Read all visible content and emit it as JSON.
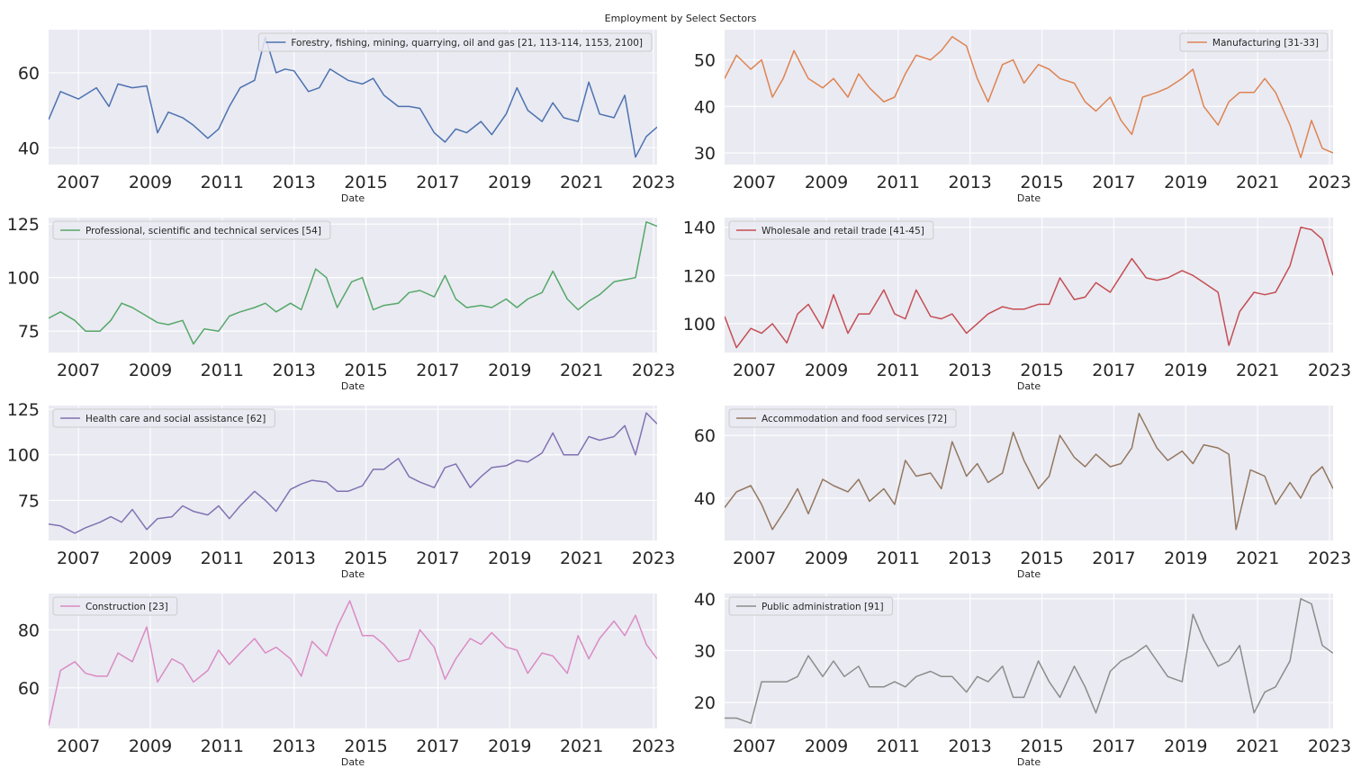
{
  "title": "Employment by Select Sectors",
  "colors": {
    "background": "#eaeaf2",
    "grid": "#ffffff"
  },
  "chart_data": [
    {
      "type": "line",
      "series_name": "Forestry, fishing, mining, quarrying, oil and gas [21, 113-114, 1153, 2100]",
      "color": "#4c72b0",
      "xlabel": "Date",
      "xlim": [
        2006.17,
        2023.1
      ],
      "ylim": [
        35.5,
        71.5
      ],
      "xticks": [
        "2007",
        "2009",
        "2011",
        "2013",
        "2015",
        "2017",
        "2019",
        "2021",
        "2023"
      ],
      "yticks": [
        "40",
        "60"
      ],
      "legend": "top-right",
      "x": [
        2006.17,
        2006.5,
        2007,
        2007.5,
        2007.85,
        2008.1,
        2008.5,
        2008.9,
        2009.2,
        2009.5,
        2009.9,
        2010.2,
        2010.6,
        2010.9,
        2011.2,
        2011.5,
        2011.9,
        2012.2,
        2012.5,
        2012.75,
        2013,
        2013.4,
        2013.7,
        2014,
        2014.5,
        2014.9,
        2015.2,
        2015.5,
        2015.9,
        2016.2,
        2016.5,
        2016.9,
        2017.2,
        2017.5,
        2017.8,
        2018.2,
        2018.5,
        2018.9,
        2019.2,
        2019.5,
        2019.9,
        2020.2,
        2020.5,
        2020.9,
        2021.2,
        2021.5,
        2021.9,
        2022.2,
        2022.5,
        2022.8,
        2023.1
      ],
      "values": [
        47.5,
        55,
        53,
        56,
        51,
        57,
        56,
        56.5,
        44,
        49.5,
        48,
        46,
        42.5,
        45,
        51,
        56,
        58,
        69.5,
        60,
        61,
        60.5,
        55,
        56,
        61,
        58,
        57,
        58.5,
        54,
        51,
        51,
        50.5,
        44,
        41.5,
        45,
        44,
        47,
        43.5,
        49,
        56,
        50,
        47,
        52,
        48,
        47,
        57.5,
        49,
        48,
        54,
        37.5,
        43,
        45.5
      ]
    },
    {
      "type": "line",
      "series_name": "Manufacturing [31-33]",
      "color": "#dd8452",
      "xlabel": "Date",
      "xlim": [
        2006.17,
        2023.1
      ],
      "ylim": [
        27.5,
        56.5
      ],
      "xticks": [
        "2007",
        "2009",
        "2011",
        "2013",
        "2015",
        "2017",
        "2019",
        "2021",
        "2023"
      ],
      "yticks": [
        "30",
        "40",
        "50"
      ],
      "legend": "top-right",
      "x": [
        2006.17,
        2006.5,
        2006.9,
        2007.2,
        2007.5,
        2007.8,
        2008.1,
        2008.5,
        2008.9,
        2009.2,
        2009.6,
        2009.9,
        2010.2,
        2010.6,
        2010.9,
        2011.2,
        2011.5,
        2011.9,
        2012.2,
        2012.5,
        2012.9,
        2013.2,
        2013.5,
        2013.9,
        2014.2,
        2014.5,
        2014.9,
        2015.2,
        2015.5,
        2015.9,
        2016.2,
        2016.5,
        2016.9,
        2017.2,
        2017.5,
        2017.8,
        2018.2,
        2018.5,
        2018.9,
        2019.2,
        2019.5,
        2019.9,
        2020.2,
        2020.5,
        2020.9,
        2021.2,
        2021.5,
        2021.9,
        2022.2,
        2022.5,
        2022.8,
        2023.1
      ],
      "values": [
        46,
        51,
        48,
        50,
        42,
        46,
        52,
        46,
        44,
        46,
        42,
        47,
        44,
        41,
        42,
        47,
        51,
        50,
        52,
        55,
        53,
        46,
        41,
        49,
        50,
        45,
        49,
        48,
        46,
        45,
        41,
        39,
        42,
        37,
        34,
        42,
        43,
        44,
        46,
        48,
        40,
        36,
        41,
        43,
        43,
        46,
        43,
        36,
        29,
        37,
        31,
        30
      ]
    },
    {
      "type": "line",
      "series_name": "Professional, scientific and technical services [54]",
      "color": "#55a868",
      "xlabel": "Date",
      "xlim": [
        2006.17,
        2023.1
      ],
      "ylim": [
        65,
        128
      ],
      "xticks": [
        "2007",
        "2009",
        "2011",
        "2013",
        "2015",
        "2017",
        "2019",
        "2021",
        "2023"
      ],
      "yticks": [
        "75",
        "100",
        "125"
      ],
      "legend": "top-left",
      "x": [
        2006.17,
        2006.5,
        2006.9,
        2007.2,
        2007.6,
        2007.9,
        2008.2,
        2008.5,
        2008.9,
        2009.2,
        2009.5,
        2009.9,
        2010.2,
        2010.5,
        2010.9,
        2011.2,
        2011.5,
        2011.9,
        2012.2,
        2012.5,
        2012.9,
        2013.2,
        2013.6,
        2013.9,
        2014.2,
        2014.6,
        2014.9,
        2015.2,
        2015.5,
        2015.9,
        2016.2,
        2016.5,
        2016.9,
        2017.2,
        2017.5,
        2017.8,
        2018.2,
        2018.5,
        2018.9,
        2019.2,
        2019.5,
        2019.9,
        2020.2,
        2020.6,
        2020.9,
        2021.2,
        2021.5,
        2021.9,
        2022.2,
        2022.5,
        2022.8,
        2023.1
      ],
      "values": [
        81,
        84,
        80,
        75,
        75,
        80,
        88,
        86,
        82,
        79,
        78,
        80,
        69,
        76,
        75,
        82,
        84,
        86,
        88,
        84,
        88,
        85,
        104,
        100,
        86,
        98,
        100,
        85,
        87,
        88,
        93,
        94,
        91,
        101,
        90,
        86,
        87,
        86,
        90,
        86,
        90,
        93,
        103,
        90,
        85,
        89,
        92,
        98,
        99,
        100,
        126,
        124
      ]
    },
    {
      "type": "line",
      "series_name": "Wholesale and retail trade [41-45]",
      "color": "#c44e52",
      "xlabel": "Date",
      "xlim": [
        2006.17,
        2023.1
      ],
      "ylim": [
        88,
        144
      ],
      "xticks": [
        "2007",
        "2009",
        "2011",
        "2013",
        "2015",
        "2017",
        "2019",
        "2021",
        "2023"
      ],
      "yticks": [
        "100",
        "120",
        "140"
      ],
      "legend": "top-left",
      "x": [
        2006.17,
        2006.5,
        2006.9,
        2007.2,
        2007.5,
        2007.9,
        2008.2,
        2008.5,
        2008.9,
        2009.2,
        2009.6,
        2009.9,
        2010.2,
        2010.6,
        2010.9,
        2011.2,
        2011.5,
        2011.9,
        2012.2,
        2012.5,
        2012.9,
        2013.2,
        2013.5,
        2013.9,
        2014.2,
        2014.5,
        2014.9,
        2015.2,
        2015.5,
        2015.9,
        2016.2,
        2016.5,
        2016.9,
        2017.2,
        2017.5,
        2017.9,
        2018.2,
        2018.5,
        2018.9,
        2019.2,
        2019.5,
        2019.9,
        2020.2,
        2020.5,
        2020.9,
        2021.2,
        2021.5,
        2021.9,
        2022.2,
        2022.5,
        2022.8,
        2023.1
      ],
      "values": [
        103,
        90,
        98,
        96,
        100,
        92,
        104,
        108,
        98,
        112,
        96,
        104,
        104,
        114,
        104,
        102,
        114,
        103,
        102,
        104,
        96,
        100,
        104,
        107,
        106,
        106,
        108,
        108,
        119,
        110,
        111,
        117,
        113,
        120,
        127,
        119,
        118,
        119,
        122,
        120,
        117,
        113,
        91,
        105,
        113,
        112,
        113,
        124,
        140,
        139,
        135,
        120
      ]
    },
    {
      "type": "line",
      "series_name": "Health care and social assistance [62]",
      "color": "#8172b3",
      "xlabel": "Date",
      "xlim": [
        2006.17,
        2023.1
      ],
      "ylim": [
        53,
        127
      ],
      "xticks": [
        "2007",
        "2009",
        "2011",
        "2013",
        "2015",
        "2017",
        "2019",
        "2021",
        "2023"
      ],
      "yticks": [
        "75",
        "100",
        "125"
      ],
      "legend": "top-left",
      "x": [
        2006.17,
        2006.5,
        2006.9,
        2007.2,
        2007.6,
        2007.9,
        2008.2,
        2008.5,
        2008.9,
        2009.2,
        2009.6,
        2009.9,
        2010.2,
        2010.6,
        2010.9,
        2011.2,
        2011.5,
        2011.9,
        2012.2,
        2012.5,
        2012.9,
        2013.2,
        2013.5,
        2013.9,
        2014.2,
        2014.5,
        2014.9,
        2015.2,
        2015.5,
        2015.9,
        2016.2,
        2016.5,
        2016.9,
        2017.2,
        2017.5,
        2017.9,
        2018.2,
        2018.5,
        2018.9,
        2019.2,
        2019.5,
        2019.9,
        2020.2,
        2020.5,
        2020.9,
        2021.2,
        2021.5,
        2021.9,
        2022.2,
        2022.5,
        2022.8,
        2023.1
      ],
      "values": [
        62,
        61,
        57,
        60,
        63,
        66,
        63,
        70,
        59,
        65,
        66,
        72,
        69,
        67,
        72,
        65,
        72,
        80,
        75,
        69,
        81,
        84,
        86,
        85,
        80,
        80,
        83,
        92,
        92,
        98,
        88,
        85,
        82,
        93,
        95,
        82,
        88,
        93,
        94,
        97,
        96,
        101,
        112,
        100,
        100,
        110,
        108,
        110,
        116,
        100,
        123,
        117
      ]
    },
    {
      "type": "line",
      "series_name": "Accommodation and food services [72]",
      "color": "#937860",
      "xlabel": "Date",
      "xlim": [
        2006.17,
        2023.1
      ],
      "ylim": [
        26.5,
        69.5
      ],
      "xticks": [
        "2007",
        "2009",
        "2011",
        "2013",
        "2015",
        "2017",
        "2019",
        "2021",
        "2023"
      ],
      "yticks": [
        "40",
        "60"
      ],
      "legend": "top-left",
      "x": [
        2006.17,
        2006.5,
        2006.9,
        2007.2,
        2007.5,
        2007.9,
        2008.2,
        2008.5,
        2008.9,
        2009.2,
        2009.6,
        2009.9,
        2010.2,
        2010.6,
        2010.9,
        2011.2,
        2011.5,
        2011.9,
        2012.2,
        2012.5,
        2012.9,
        2013.2,
        2013.5,
        2013.9,
        2014.2,
        2014.5,
        2014.9,
        2015.2,
        2015.5,
        2015.9,
        2016.2,
        2016.5,
        2016.9,
        2017.2,
        2017.5,
        2017.7,
        2018.2,
        2018.5,
        2018.9,
        2019.2,
        2019.5,
        2019.9,
        2020.2,
        2020.4,
        2020.8,
        2021.2,
        2021.5,
        2021.9,
        2022.2,
        2022.5,
        2022.8,
        2023.1
      ],
      "values": [
        37,
        42,
        44,
        38,
        30,
        37,
        43,
        35,
        46,
        44,
        42,
        46,
        39,
        43,
        38,
        52,
        47,
        48,
        43,
        58,
        47,
        51,
        45,
        48,
        61,
        52,
        43,
        47,
        60,
        53,
        50,
        54,
        50,
        51,
        56,
        67,
        56,
        52,
        55,
        51,
        57,
        56,
        54,
        30,
        49,
        47,
        38,
        45,
        40,
        47,
        50,
        43
      ]
    },
    {
      "type": "line",
      "series_name": "Construction [23]",
      "color": "#da8bc3",
      "xlabel": "Date",
      "xlim": [
        2006.17,
        2023.1
      ],
      "ylim": [
        46,
        92.5
      ],
      "xticks": [
        "2007",
        "2009",
        "2011",
        "2013",
        "2015",
        "2017",
        "2019",
        "2021",
        "2023"
      ],
      "yticks": [
        "60",
        "80"
      ],
      "legend": "top-left",
      "x": [
        2006.17,
        2006.5,
        2006.9,
        2007.2,
        2007.5,
        2007.8,
        2008.1,
        2008.5,
        2008.9,
        2009.2,
        2009.6,
        2009.9,
        2010.2,
        2010.6,
        2010.9,
        2011.2,
        2011.5,
        2011.9,
        2012.2,
        2012.5,
        2012.9,
        2013.2,
        2013.5,
        2013.9,
        2014.2,
        2014.55,
        2014.9,
        2015.2,
        2015.5,
        2015.9,
        2016.2,
        2016.5,
        2016.9,
        2017.2,
        2017.5,
        2017.9,
        2018.2,
        2018.5,
        2018.9,
        2019.2,
        2019.5,
        2019.9,
        2020.2,
        2020.6,
        2020.9,
        2021.2,
        2021.5,
        2021.9,
        2022.2,
        2022.5,
        2022.8,
        2023.1
      ],
      "values": [
        47,
        66,
        69,
        65,
        64,
        64,
        72,
        69,
        81,
        62,
        70,
        68,
        62,
        66,
        73,
        68,
        72,
        77,
        72,
        74,
        70,
        64,
        76,
        71,
        81,
        90,
        78,
        78,
        75,
        69,
        70,
        80,
        74,
        63,
        70,
        77,
        75,
        79,
        74,
        73,
        65,
        72,
        71,
        65,
        78,
        70,
        77,
        83,
        78,
        85,
        75,
        70
      ]
    },
    {
      "type": "line",
      "series_name": "Public administration [91]",
      "color": "#8c8c8c",
      "xlabel": "Date",
      "xlim": [
        2006.17,
        2023.1
      ],
      "ylim": [
        15,
        41
      ],
      "xticks": [
        "2007",
        "2009",
        "2011",
        "2013",
        "2015",
        "2017",
        "2019",
        "2021",
        "2023"
      ],
      "yticks": [
        "20",
        "30",
        "40"
      ],
      "legend": "top-left",
      "x": [
        2006.17,
        2006.5,
        2006.9,
        2007.2,
        2007.5,
        2007.9,
        2008.2,
        2008.5,
        2008.9,
        2009.2,
        2009.5,
        2009.9,
        2010.2,
        2010.6,
        2010.9,
        2011.2,
        2011.5,
        2011.9,
        2012.2,
        2012.5,
        2012.9,
        2013.2,
        2013.5,
        2013.9,
        2014.2,
        2014.5,
        2014.9,
        2015.2,
        2015.5,
        2015.9,
        2016.2,
        2016.5,
        2016.9,
        2017.2,
        2017.5,
        2017.9,
        2018.2,
        2018.5,
        2018.9,
        2019.2,
        2019.5,
        2019.9,
        2020.2,
        2020.5,
        2020.9,
        2021.2,
        2021.5,
        2021.9,
        2022.2,
        2022.5,
        2022.8,
        2023.1
      ],
      "values": [
        17,
        17,
        16,
        24,
        24,
        24,
        25,
        29,
        25,
        28,
        25,
        27,
        23,
        23,
        24,
        23,
        25,
        26,
        25,
        25,
        22,
        25,
        24,
        27,
        21,
        21,
        28,
        24,
        21,
        27,
        23,
        18,
        26,
        28,
        29,
        31,
        28,
        25,
        24,
        37,
        32,
        27,
        28,
        31,
        18,
        22,
        23,
        28,
        40,
        39,
        31,
        29.5
      ]
    }
  ]
}
